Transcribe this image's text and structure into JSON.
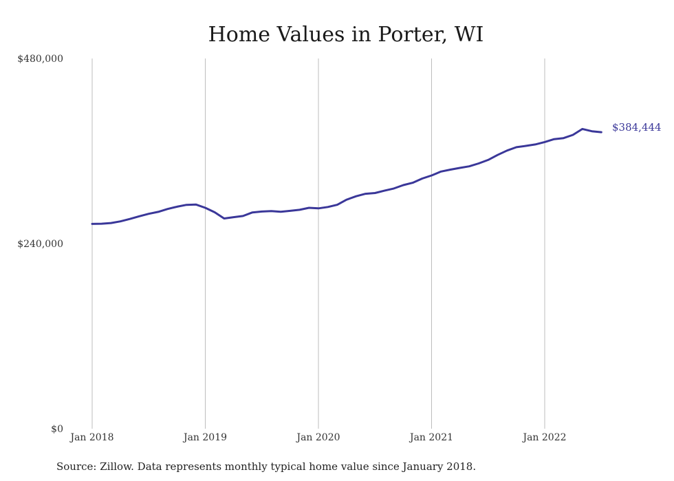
{
  "chart_data": {
    "type": "line",
    "title": "Home Values in Porter, WI",
    "source": "Source: Zillow. Data represents monthly typical home value since January 2018.",
    "ylim": [
      0,
      480000
    ],
    "y_ticks": [
      0,
      240000,
      480000
    ],
    "y_tick_labels": [
      "$0",
      "$240,000",
      "$480,000"
    ],
    "x_ticks": [
      "Jan 2018",
      "Jan 2019",
      "Jan 2020",
      "Jan 2021",
      "Jan 2022"
    ],
    "xlim": [
      "2018-01",
      "2022-07"
    ],
    "grid": "vertical",
    "line_color": "#3a3799",
    "end_label": "$384,444",
    "series": [
      {
        "x": [
          "2018-01",
          "2018-02",
          "2018-03",
          "2018-04",
          "2018-05",
          "2018-06",
          "2018-07",
          "2018-08",
          "2018-09",
          "2018-10",
          "2018-11",
          "2018-12",
          "2019-01",
          "2019-02",
          "2019-03",
          "2019-04",
          "2019-05",
          "2019-06",
          "2019-07",
          "2019-08",
          "2019-09",
          "2019-10",
          "2019-11",
          "2019-12",
          "2020-01",
          "2020-02",
          "2020-03",
          "2020-04",
          "2020-05",
          "2020-06",
          "2020-07",
          "2020-08",
          "2020-09",
          "2020-10",
          "2020-11",
          "2020-12",
          "2021-01",
          "2021-02",
          "2021-03",
          "2021-04",
          "2021-05",
          "2021-06",
          "2021-07",
          "2021-08",
          "2021-09",
          "2021-10",
          "2021-11",
          "2021-12",
          "2022-01",
          "2022-02",
          "2022-03",
          "2022-04",
          "2022-05",
          "2022-06",
          "2022-07"
        ],
        "values": [
          265500,
          265800,
          266700,
          268800,
          271900,
          275400,
          278600,
          281100,
          284900,
          287800,
          290200,
          290700,
          286400,
          280600,
          272600,
          274300,
          275800,
          280400,
          281600,
          282200,
          281300,
          282500,
          283800,
          286400,
          285700,
          287500,
          290300,
          297000,
          301400,
          304600,
          305600,
          308600,
          311500,
          315800,
          318900,
          324300,
          328300,
          333400,
          335900,
          338100,
          340200,
          343900,
          348500,
          354900,
          360600,
          365000,
          366700,
          368600,
          371700,
          375400,
          376800,
          381000,
          388600,
          385700,
          384444
        ]
      }
    ]
  }
}
